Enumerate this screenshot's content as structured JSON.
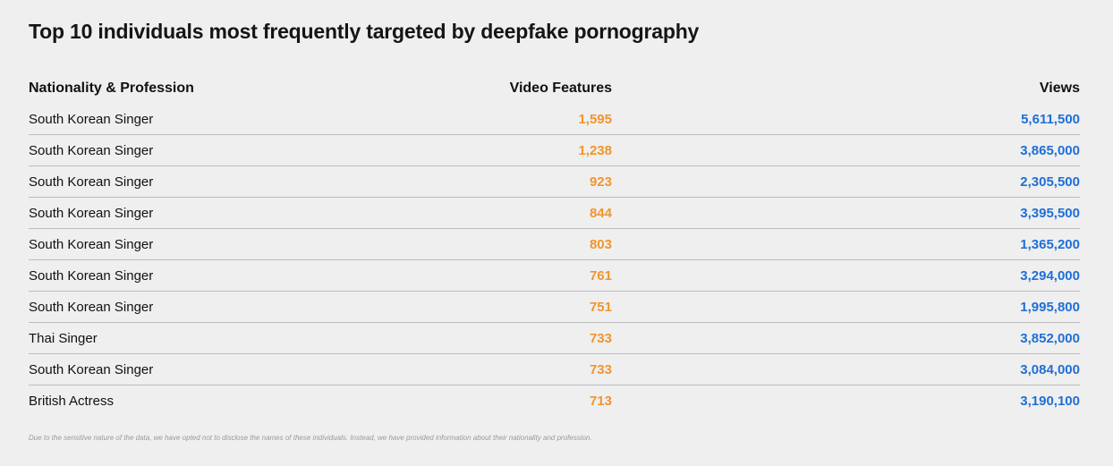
{
  "chart_data": {
    "type": "table",
    "title": "Top 10 individuals most frequently targeted by deepfake pornography",
    "columns": [
      "Nationality & Profession",
      "Video Features",
      "Views"
    ],
    "rows": [
      [
        "South Korean Singer",
        "1,595",
        "5,611,500"
      ],
      [
        "South Korean Singer",
        "1,238",
        "3,865,000"
      ],
      [
        "South Korean Singer",
        "923",
        "2,305,500"
      ],
      [
        "South Korean Singer",
        "844",
        "3,395,500"
      ],
      [
        "South Korean Singer",
        "803",
        "1,365,200"
      ],
      [
        "South Korean Singer",
        "761",
        "3,294,000"
      ],
      [
        "South Korean Singer",
        "751",
        "1,995,800"
      ],
      [
        "Thai Singer",
        "733",
        "3,852,000"
      ],
      [
        "South Korean Singer",
        "733",
        "3,084,000"
      ],
      [
        "British Actress",
        "713",
        "3,190,100"
      ]
    ],
    "colors": {
      "video_features": "#f0952c",
      "views": "#1f6fd6"
    },
    "footnote": "Due to the sensitive nature of the data, we have opted not to disclose the names of these individuals. Instead, we have provided information about their nationality and profession."
  }
}
